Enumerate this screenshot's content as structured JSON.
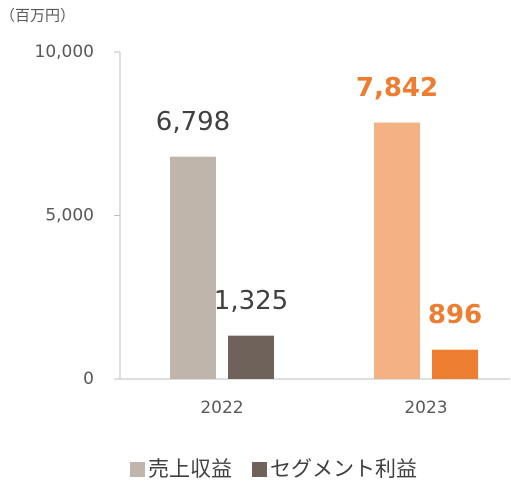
{
  "chart_data": {
    "type": "bar",
    "unit_label": "（百万円）",
    "categories": [
      "2022",
      "2023"
    ],
    "series": [
      {
        "name": "売上収益",
        "color": "#bfb5ab",
        "colors": [
          "#bfb5ab",
          "#f4b183"
        ],
        "values": [
          6798,
          7842
        ],
        "value_labels": [
          "6,798",
          "7,842"
        ]
      },
      {
        "name": "セグメント利益",
        "color": "#6f625a",
        "colors": [
          "#6f625a",
          "#ed7d31"
        ],
        "values": [
          1325,
          896
        ],
        "value_labels": [
          "1,325",
          "896"
        ]
      }
    ],
    "label_colors": [
      "#404040",
      "#ed7d31"
    ],
    "label_bold": [
      false,
      true
    ],
    "ylim": [
      0,
      10000
    ],
    "yticks": [
      {
        "value": 0,
        "label": "0"
      },
      {
        "value": 5000,
        "label": "5,000"
      },
      {
        "value": 10000,
        "label": "10,000"
      }
    ],
    "grid": false,
    "legend": "bottom"
  }
}
